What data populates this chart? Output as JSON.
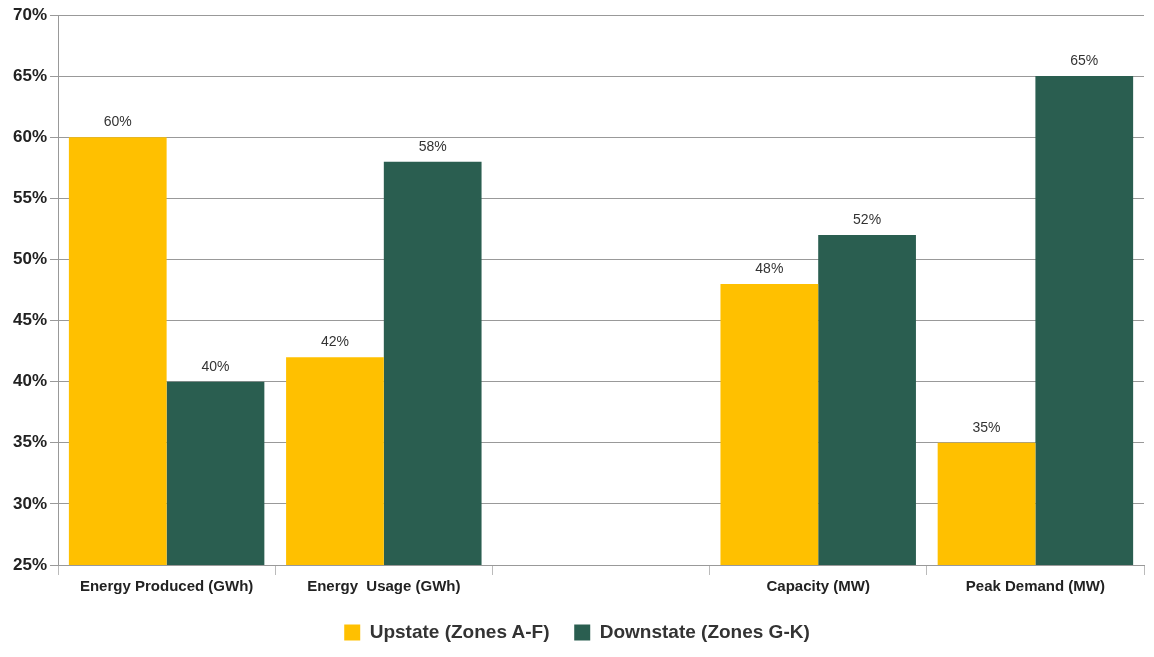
{
  "chart_data": {
    "type": "bar",
    "categories": [
      "Energy Produced (GWh)",
      "Energy  Usage (GWh)",
      null,
      "Capacity (MW)",
      "Peak Demand (MW)"
    ],
    "series": [
      {
        "name": "Upstate (Zones A-F)",
        "color": "#ffc000",
        "values": [
          60,
          42,
          null,
          48,
          35
        ],
        "value_labels": [
          "60%",
          "42%",
          null,
          "48%",
          "35%"
        ]
      },
      {
        "name": "Downstate (Zones G-K)",
        "color": "#2a5e50",
        "values": [
          40,
          58,
          null,
          52,
          65
        ],
        "value_labels": [
          "40%",
          "58%",
          null,
          "52%",
          "65%"
        ]
      }
    ],
    "ylim": [
      25,
      70
    ],
    "yticks": [
      {
        "value": 25,
        "label": "25%"
      },
      {
        "value": 30,
        "label": "30%"
      },
      {
        "value": 35,
        "label": "35%"
      },
      {
        "value": 40,
        "label": "40%"
      },
      {
        "value": 45,
        "label": "45%"
      },
      {
        "value": 50,
        "label": "50%"
      },
      {
        "value": 55,
        "label": "55%"
      },
      {
        "value": 60,
        "label": "60%"
      },
      {
        "value": 65,
        "label": "65%"
      },
      {
        "value": 70,
        "label": "70%"
      }
    ],
    "grid": "y",
    "legend": "bottom"
  }
}
